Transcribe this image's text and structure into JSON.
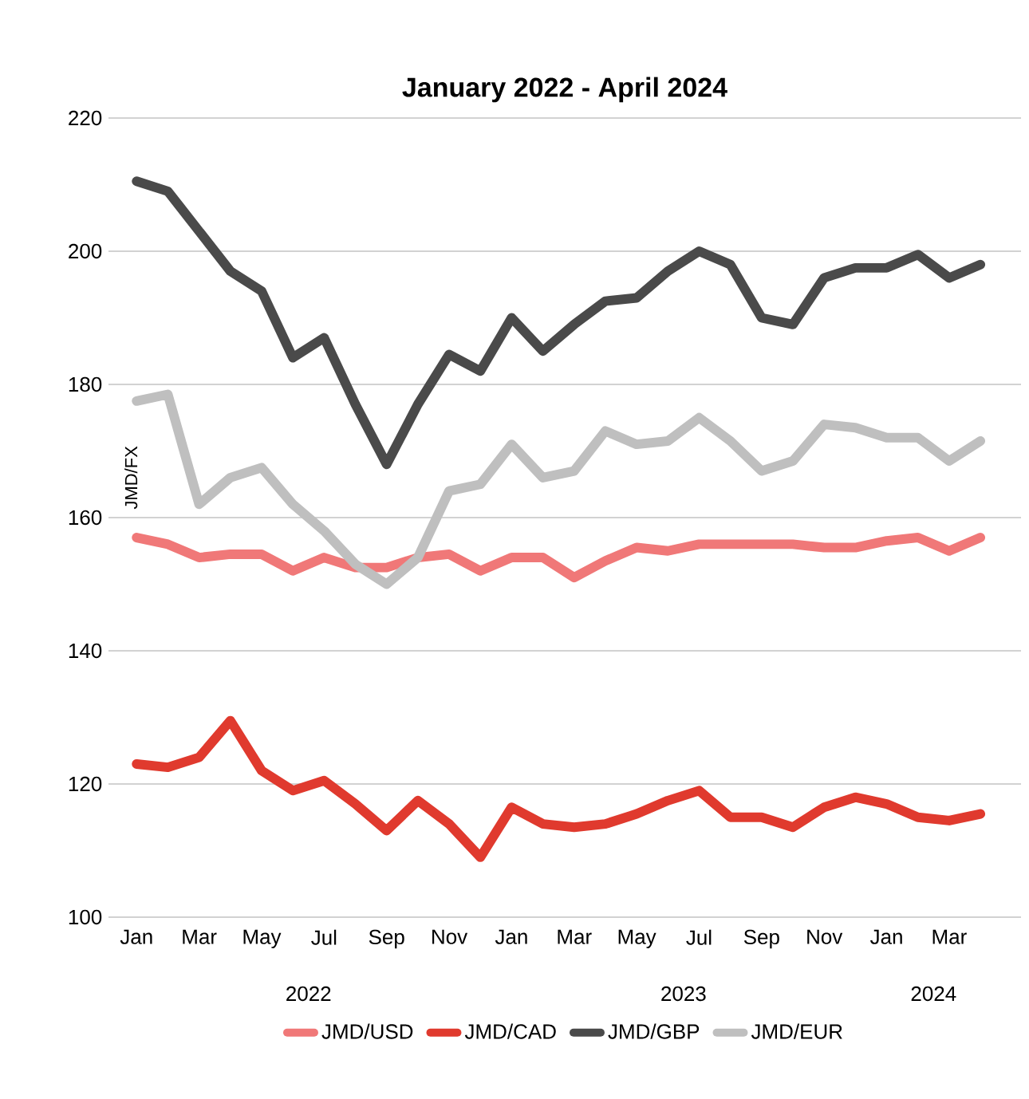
{
  "chart_data": {
    "type": "line",
    "title": "January 2022 - April 2024",
    "ylabel": "JMD/FX",
    "categories": [
      "Jan",
      null,
      "Mar",
      null,
      "May",
      null,
      "Jul",
      null,
      "Sep",
      null,
      "Nov",
      null,
      "Jan",
      null,
      "Mar",
      null,
      "May",
      null,
      "Jul",
      null,
      "Sep",
      null,
      "Nov",
      null,
      "Jan",
      null,
      "Mar",
      null
    ],
    "series": [
      {
        "name": "JMD/USD",
        "color": "#f07878",
        "values": [
          157,
          156,
          154,
          154.5,
          154.5,
          152,
          154,
          152.5,
          152.5,
          154,
          154.5,
          152,
          154,
          154,
          151,
          153.5,
          155.5,
          155,
          156,
          156,
          156,
          156,
          155.5,
          155.5,
          156.5,
          157,
          155,
          157
        ]
      },
      {
        "name": "JMD/CAD",
        "color": "#e03a2e",
        "values": [
          123,
          122.5,
          124,
          129.5,
          122,
          119,
          120.5,
          117,
          113,
          117.5,
          114,
          109,
          116.5,
          114,
          113.5,
          114,
          115.5,
          117.5,
          119,
          115,
          115,
          113.5,
          116.5,
          118,
          117,
          115,
          114.5,
          115.5
        ]
      },
      {
        "name": "JMD/GBP",
        "color": "#4a4a4a",
        "values": [
          210.5,
          209,
          203,
          197,
          194,
          184,
          187,
          177,
          168,
          177,
          184.5,
          182,
          190,
          185,
          189,
          192.5,
          193,
          197,
          200,
          198,
          190,
          189,
          196,
          197.5,
          197.5,
          199.5,
          196,
          198
        ]
      },
      {
        "name": "JMD/EUR",
        "color": "#bfbfbf",
        "values": [
          177.5,
          178.5,
          162,
          166,
          167.5,
          162,
          158,
          153,
          150,
          154,
          164,
          165,
          171,
          166,
          167,
          173,
          171,
          171.5,
          175,
          171.5,
          167,
          168.5,
          174,
          173.5,
          172,
          172,
          168.5,
          171.5
        ]
      }
    ],
    "annotations": [
      "2022",
      "2023",
      "2024"
    ],
    "ylim": [
      100,
      220
    ],
    "yticks": [
      100,
      120,
      140,
      160,
      180,
      200,
      220
    ],
    "grid": "y",
    "legend": "bottom",
    "marker": "none",
    "line_style": "solid"
  }
}
